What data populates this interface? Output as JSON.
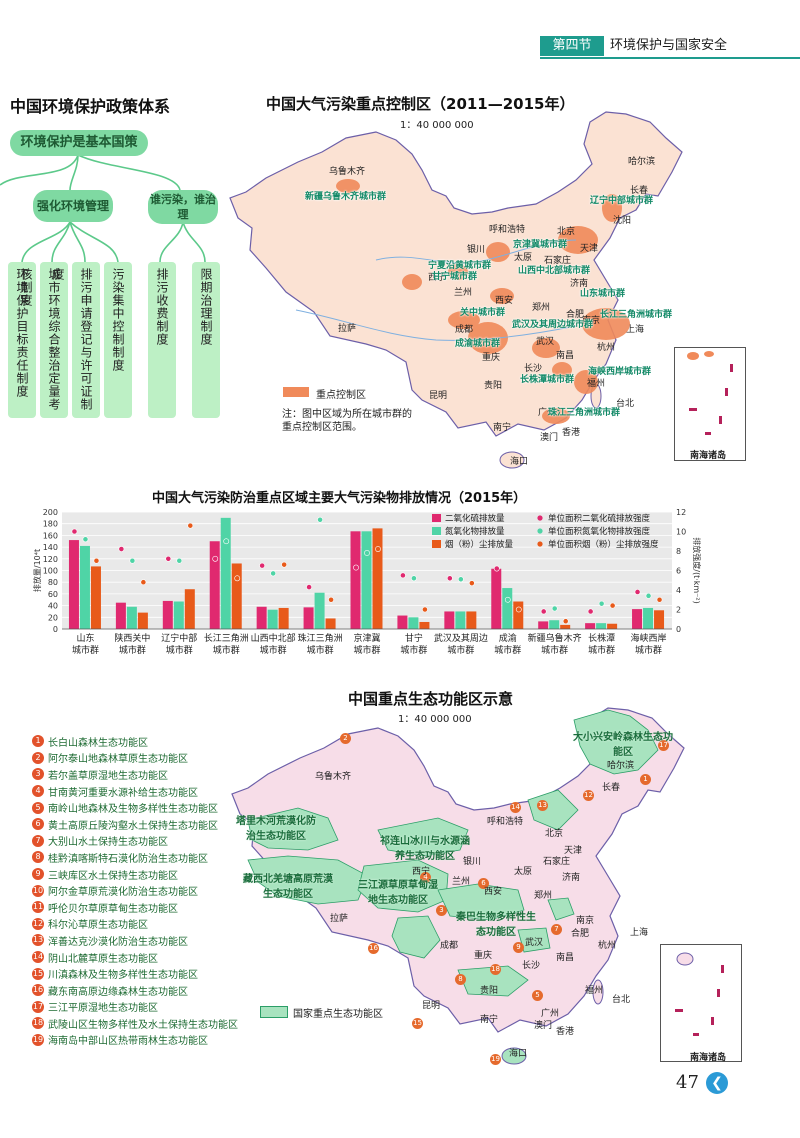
{
  "header": {
    "section": "第四节",
    "title": "环境保护与国家安全"
  },
  "policy": {
    "title": "中国环境保护政策体系",
    "root": "环境保护是基本国策",
    "branch1": "强化环境管理",
    "branch2": "谁污染，谁治理",
    "leaves1": [
      "环境保护目标责任制度",
      "城市环境综合整治定量考核制度",
      "排污申请登记与许可证制度",
      "污染集中控制制度"
    ],
    "leaves2": [
      "排污收费制度",
      "限期治理制度"
    ]
  },
  "map1": {
    "title": "中国大气污染重点控制区（2011—2015年）",
    "scale": "1：40 000 000",
    "legend": "重点控制区",
    "note": "注：图中区域为所在城市群的重点控制区范围。",
    "inset": "南海诸岛",
    "cities": [
      "乌鲁木齐",
      "哈尔滨",
      "长春",
      "沈阳",
      "呼和浩特",
      "北京",
      "天津",
      "银川",
      "太原",
      "石家庄",
      "西宁",
      "兰州",
      "济南",
      "西安",
      "郑州",
      "拉萨",
      "成都",
      "合肥",
      "南京",
      "上海",
      "武汉",
      "杭州",
      "重庆",
      "南昌",
      "长沙",
      "福州",
      "贵阳",
      "台北",
      "昆明",
      "广州",
      "南宁",
      "澳门",
      "香港",
      "海口"
    ],
    "regions": [
      "新疆乌鲁木齐城市群",
      "辽宁中部城市群",
      "京津冀城市群",
      "宁夏沿黄城市群",
      "山西中北部城市群",
      "甘宁城市群",
      "山东城市群",
      "关中城市群",
      "长江三角洲城市群",
      "成渝城市群",
      "武汉及其周边城市群",
      "长株潭城市群",
      "海峡西岸城市群",
      "珠江三角洲城市群"
    ]
  },
  "chart_data": {
    "type": "bar",
    "title": "中国大气污染防治重点区域主要大气污染物排放情况（2015年）",
    "ylabel": "排放量/10⁴t",
    "y2label": "排放强度/(t·km⁻²)",
    "ylim": [
      0,
      200
    ],
    "y2lim": [
      0,
      12
    ],
    "yticks": [
      "0",
      "20",
      "40",
      "60",
      "80",
      "100",
      "120",
      "140",
      "160",
      "180",
      "200"
    ],
    "y2ticks": [
      "0",
      "2",
      "4",
      "6",
      "8",
      "10",
      "12"
    ],
    "categories": [
      "山东\n城市群",
      "陕西关中\n城市群",
      "辽宁中部\n城市群",
      "长江三角洲\n城市群",
      "山西中北部\n城市群",
      "珠江三角洲\n城市群",
      "京津冀\n城市群",
      "甘宁\n城市群",
      "武汉及其周边\n城市群",
      "成渝\n城市群",
      "新疆乌鲁木齐\n城市群",
      "长株潭\n城市群",
      "海峡西岸\n城市群"
    ],
    "series": [
      {
        "name": "二氧化硫排放量",
        "color": "#e0296f",
        "values": [
          152,
          45,
          48,
          150,
          38,
          37,
          167,
          23,
          30,
          103,
          13,
          10,
          34
        ]
      },
      {
        "name": "氮氧化物排放量",
        "color": "#4fd4a6",
        "values": [
          142,
          38,
          47,
          190,
          33,
          62,
          167,
          20,
          30,
          70,
          15,
          10,
          36
        ]
      },
      {
        "name": "烟（粉）尘排放量",
        "color": "#e85a1a",
        "values": [
          107,
          28,
          68,
          112,
          36,
          18,
          172,
          12,
          30,
          47,
          7,
          9,
          32
        ]
      }
    ],
    "intensity": [
      {
        "name": "单位面积二氧化硫排放强度",
        "color": "#e0296f",
        "values": [
          10,
          8.2,
          7.2,
          7.2,
          6.5,
          4.3,
          6.3,
          5.5,
          5.2,
          6.2,
          1.8,
          1.8,
          3.8
        ]
      },
      {
        "name": "单位面积氮氧化物排放强度",
        "color": "#4fd4a6",
        "values": [
          9.2,
          7.0,
          7.0,
          9.0,
          5.7,
          11.2,
          7.8,
          5.2,
          5.1,
          3.0,
          2.1,
          2.6,
          3.4
        ]
      },
      {
        "name": "单位面积烟（粉）尘排放强度",
        "color": "#e85a1a",
        "values": [
          7.0,
          4.8,
          10.6,
          5.2,
          6.6,
          3.0,
          8.2,
          2.0,
          4.7,
          2.0,
          0.8,
          2.4,
          3.0
        ]
      }
    ]
  },
  "map2": {
    "title": "中国重点生态功能区示意",
    "scale": "1：40 000 000",
    "legend": "国家重点生态功能区",
    "inset": "南海诸岛",
    "labels": [
      "大小兴安岭森林生态功能区",
      "塔里木河荒漠化防治生态功能区",
      "祁连山冰川与水源涵养生态功能区",
      "藏西北羌塘高原荒漠生态功能区",
      "三江源草原草甸湿地生态功能区",
      "若尔盖草原湿地生态功能区",
      "秦巴生物多样性生态功能区"
    ],
    "cities": [
      "乌鲁木齐",
      "哈尔滨",
      "长春",
      "呼和浩特",
      "北京",
      "天津",
      "银川",
      "太原",
      "石家庄",
      "西宁",
      "兰州",
      "济南",
      "西安",
      "郑州",
      "拉萨",
      "成都",
      "南京",
      "上海",
      "武汉",
      "合肥",
      "杭州",
      "重庆",
      "长沙",
      "南昌",
      "福州",
      "贵阳",
      "台北",
      "昆明",
      "广州",
      "南宁",
      "澳门",
      "香港",
      "海口"
    ],
    "list": [
      "长白山森林生态功能区",
      "阿尔泰山地森林草原生态功能区",
      "若尔盖草原湿地生态功能区",
      "甘南黄河重要水源补给生态功能区",
      "南岭山地森林及生物多样性生态功能区",
      "黄土高原丘陵沟壑水土保持生态功能区",
      "大别山水土保持生态功能区",
      "桂黔滇喀斯特石漠化防治生态功能区",
      "三峡库区水土保持生态功能区",
      "阿尔金草原荒漠化防治生态功能区",
      "呼伦贝尔草原草甸生态功能区",
      "科尔沁草原生态功能区",
      "浑善达克沙漠化防治生态功能区",
      "阴山北麓草原生态功能区",
      "川滇森林及生物多样性生态功能区",
      "藏东南高原边缘森林生态功能区",
      "三江平原湿地生态功能区",
      "武陵山区生物多样性及水土保持生态功能区",
      "海南岛中部山区热带雨林生态功能区"
    ]
  },
  "page": {
    "number": "47"
  }
}
